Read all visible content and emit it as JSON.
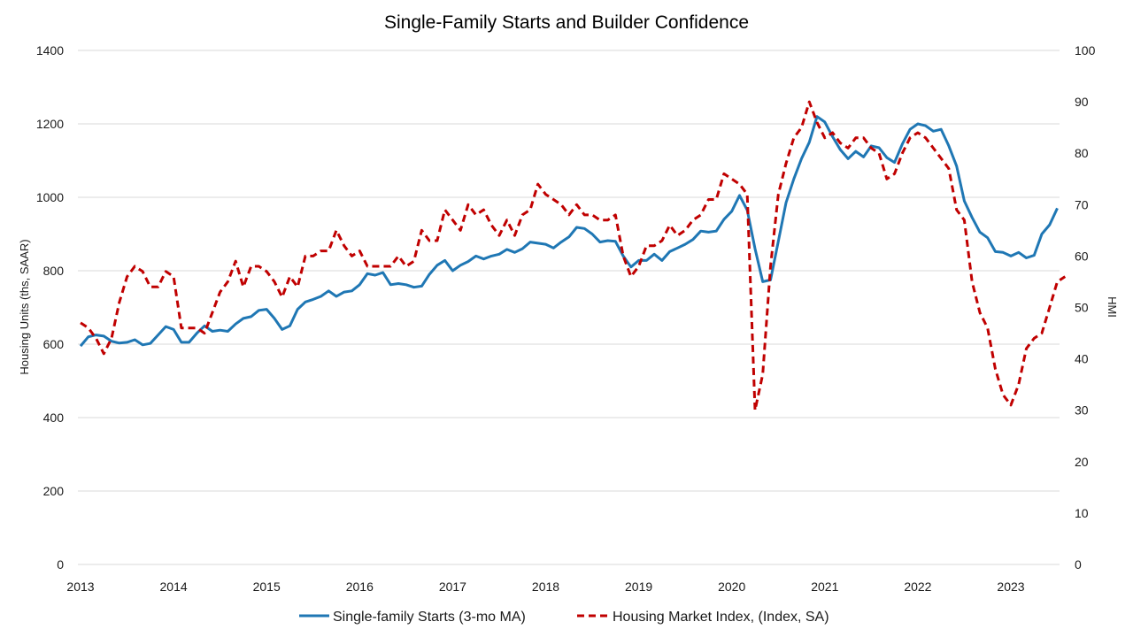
{
  "chart_data": {
    "type": "line",
    "title": "Single-Family Starts and Builder Confidence",
    "ylabel_left": "Housing Units (ths, SAAR)",
    "ylabel_right": "HMI",
    "ylim_left": [
      0,
      1400
    ],
    "ylim_right": [
      0,
      100
    ],
    "yticks_left": [
      "0",
      "200",
      "400",
      "600",
      "800",
      "1000",
      "1200",
      "1400"
    ],
    "yticks_right": [
      "0",
      "10",
      "20",
      "30",
      "40",
      "50",
      "60",
      "70",
      "80",
      "90",
      "100"
    ],
    "xticks": [
      "2013",
      "2014",
      "2015",
      "2016",
      "2017",
      "2018",
      "2019",
      "2020",
      "2021",
      "2022",
      "2023"
    ],
    "grid": true,
    "legend_position": "bottom",
    "x_start": "2013-01",
    "series": [
      {
        "name": "Single-family Starts (3-mo MA)",
        "axis": "left",
        "color": "#1f77b4",
        "style": "solid",
        "values": [
          595,
          620,
          625,
          622,
          608,
          603,
          605,
          612,
          598,
          602,
          625,
          648,
          640,
          605,
          605,
          630,
          650,
          635,
          638,
          635,
          655,
          670,
          675,
          692,
          695,
          670,
          640,
          650,
          695,
          715,
          722,
          730,
          745,
          730,
          742,
          745,
          762,
          792,
          788,
          795,
          762,
          765,
          762,
          755,
          758,
          790,
          815,
          828,
          800,
          815,
          825,
          840,
          832,
          840,
          845,
          858,
          850,
          860,
          878,
          875,
          872,
          862,
          878,
          892,
          918,
          915,
          900,
          878,
          882,
          880,
          840,
          810,
          828,
          828,
          845,
          828,
          852,
          862,
          872,
          885,
          908,
          905,
          908,
          940,
          962,
          1005,
          965,
          860,
          770,
          775,
          880,
          985,
          1050,
          1105,
          1150,
          1220,
          1205,
          1165,
          1130,
          1105,
          1125,
          1110,
          1140,
          1135,
          1108,
          1095,
          1145,
          1185,
          1200,
          1195,
          1180,
          1185,
          1140,
          1085,
          990,
          945,
          905,
          890,
          852,
          850,
          840,
          850,
          835,
          842,
          900,
          925,
          970
        ]
      },
      {
        "name": "Housing Market Index, (Index, SA)",
        "axis": "right",
        "color": "#c00000",
        "style": "dashed",
        "values": [
          47,
          46,
          44,
          41,
          44,
          51,
          56,
          58,
          57,
          54,
          54,
          57,
          56,
          46,
          46,
          46,
          45,
          49,
          53,
          55,
          59,
          54,
          58,
          58,
          57,
          55,
          52,
          56,
          54,
          60,
          60,
          61,
          61,
          65,
          62,
          60,
          61,
          58,
          58,
          58,
          58,
          60,
          58,
          59,
          65,
          63,
          63,
          69,
          67,
          65,
          70,
          68,
          69,
          66,
          64,
          67,
          64,
          68,
          69,
          74,
          72,
          71,
          70,
          68,
          70,
          68,
          68,
          67,
          67,
          68,
          60,
          56,
          58,
          62,
          62,
          63,
          66,
          64,
          65,
          67,
          68,
          71,
          71,
          76,
          75,
          74,
          72,
          30,
          37,
          58,
          72,
          78,
          83,
          85,
          90,
          86,
          83,
          84,
          82,
          81,
          83,
          83,
          81,
          80,
          75,
          76,
          80,
          83,
          84,
          83,
          81,
          79,
          77,
          69,
          67,
          55,
          49,
          46,
          38,
          33,
          31,
          35,
          42,
          44,
          45,
          50,
          55,
          56
        ]
      }
    ]
  }
}
